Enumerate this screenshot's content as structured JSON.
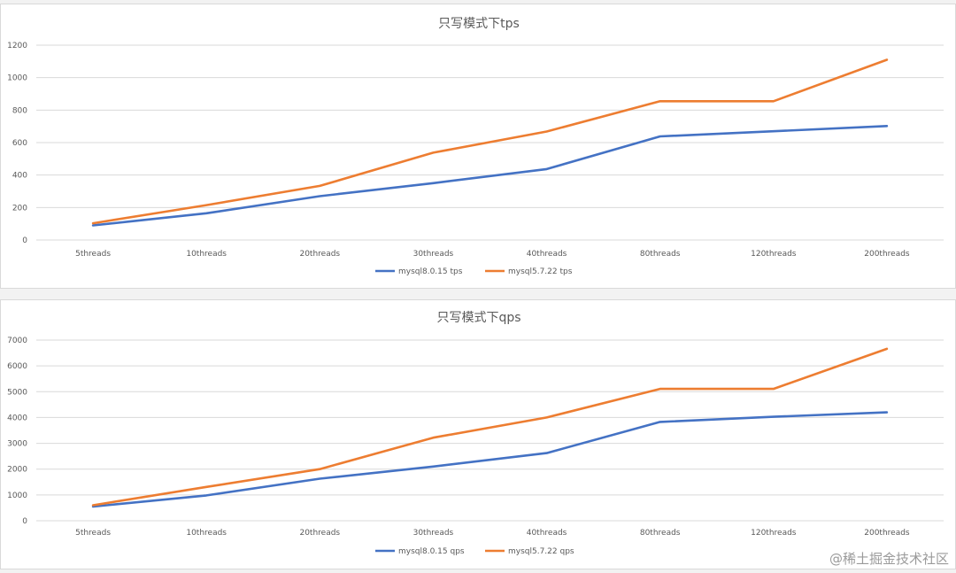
{
  "chart_data": [
    {
      "type": "line",
      "title": "只写模式下tps",
      "categories": [
        "5threads",
        "10threads",
        "20threads",
        "30threads",
        "40threads",
        "80threads",
        "120threads",
        "200threads"
      ],
      "series": [
        {
          "name": "mysql8.0.15 tps",
          "color": "#4472c4",
          "values": [
            90,
            165,
            270,
            350,
            437,
            638,
            670,
            702
          ]
        },
        {
          "name": "mysql5.7.22 tps",
          "color": "#ed7d31",
          "values": [
            103,
            215,
            333,
            538,
            668,
            855,
            855,
            1110
          ]
        }
      ],
      "ylim": [
        0,
        1200
      ],
      "yticks": [
        0,
        200,
        400,
        600,
        800,
        1000,
        1200
      ],
      "ytick_labels": [
        "0",
        "200",
        "400",
        "600",
        "800",
        "1000",
        "1200"
      ],
      "xlabel": "",
      "ylabel": "",
      "grid": true,
      "legend": "bottom"
    },
    {
      "type": "line",
      "title": "只写模式下qps",
      "categories": [
        "5threads",
        "10threads",
        "20threads",
        "30threads",
        "40threads",
        "80threads",
        "120threads",
        "200threads"
      ],
      "series": [
        {
          "name": "mysql8.0.15 qps",
          "color": "#4472c4",
          "values": [
            550,
            980,
            1630,
            2100,
            2620,
            3830,
            4030,
            4200
          ]
        },
        {
          "name": "mysql5.7.22 qps",
          "color": "#ed7d31",
          "values": [
            600,
            1310,
            2000,
            3220,
            4000,
            5110,
            5110,
            6660
          ]
        }
      ],
      "ylim": [
        0,
        7000
      ],
      "yticks": [
        0,
        1000,
        2000,
        3000,
        4000,
        5000,
        6000,
        7000
      ],
      "ytick_labels": [
        "0",
        "1000",
        "2000",
        "3000",
        "4000",
        "5000",
        "6000",
        "7000"
      ],
      "xlabel": "",
      "ylabel": "",
      "grid": true,
      "legend": "bottom"
    }
  ],
  "watermark": "@稀土掘金技术社区"
}
